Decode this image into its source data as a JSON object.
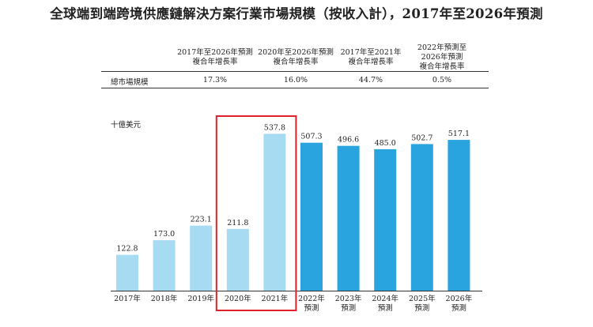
{
  "title": "全球端到端跨境供應鏈解決方案行業市場規模（按收入計），2017年至2026年預測",
  "table": {
    "headers": [
      [
        "2017年至2026年預測",
        "複合年增長率"
      ],
      [
        "2020年至2026年預測",
        "複合年增長率"
      ],
      [
        "2017年至2021年",
        "複合年增長率"
      ],
      [
        "2022年預測至",
        "2026年預測",
        "複合年增長率"
      ]
    ],
    "row_label": "總市場規模",
    "row_values": [
      "17.3%",
      "16.0%",
      "44.7%",
      "0.5%"
    ]
  },
  "unit_label": "十億美元",
  "chart_data": {
    "type": "bar",
    "categories": [
      [
        "2017年"
      ],
      [
        "2018年"
      ],
      [
        "2019年"
      ],
      [
        "2020年"
      ],
      [
        "2021年"
      ],
      [
        "2022年",
        "預測"
      ],
      [
        "2023年",
        "預測"
      ],
      [
        "2024年",
        "預測"
      ],
      [
        "2025年",
        "預測"
      ],
      [
        "2026年",
        "預測"
      ]
    ],
    "values": [
      122.8,
      173.0,
      223.1,
      211.8,
      537.8,
      507.3,
      496.6,
      485.0,
      502.7,
      517.1
    ],
    "value_labels": [
      "122.8",
      "173.0",
      "223.1",
      "211.8",
      "537.8",
      "507.3",
      "496.6",
      "485.0",
      "502.7",
      "517.1"
    ],
    "colors": [
      "#a7dbf2",
      "#a7dbf2",
      "#a7dbf2",
      "#a7dbf2",
      "#a7dbf2",
      "#29a4de",
      "#29a4de",
      "#29a4de",
      "#29a4de",
      "#29a4de"
    ],
    "highlight_categories": [
      "2020年",
      "2021年"
    ],
    "highlight_color": "#e0202a",
    "ylim": [
      0,
      650
    ]
  }
}
